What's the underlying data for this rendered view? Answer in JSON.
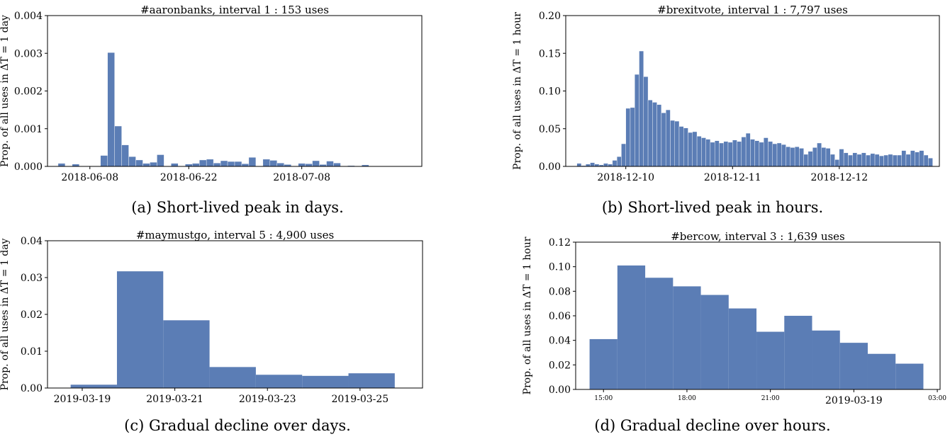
{
  "colors": {
    "bar": "#5b7db5",
    "axis": "#000000"
  },
  "panels": [
    {
      "caption": "(a) Short-lived peak in days.",
      "chart_data": {
        "type": "bar",
        "title": "#aaronbanks, interval 1 : 153 uses",
        "ylabel": "Prop. of all uses in ΔT = 1 day",
        "xlabel": "",
        "xlim": [
          0,
          53
        ],
        "ylim": [
          0,
          0.004
        ],
        "yticks": [
          "0.000",
          "0.001",
          "0.002",
          "0.003",
          "0.004"
        ],
        "ytick_values": [
          0,
          0.001,
          0.002,
          0.003,
          0.004
        ],
        "xticks": [
          {
            "pos": 6,
            "label": "2018-06-08"
          },
          {
            "pos": 20,
            "label": "2018-06-22"
          },
          {
            "pos": 36,
            "label": "2018-07-08"
          }
        ],
        "bar_width": 1,
        "x": [
          2,
          4,
          8,
          9,
          10,
          11,
          12,
          13,
          14,
          15,
          16,
          17,
          18,
          19,
          20,
          21,
          22,
          23,
          24,
          25,
          26,
          27,
          28,
          29,
          30,
          31,
          32,
          33,
          34,
          35,
          36,
          37,
          38,
          39,
          40,
          41,
          42,
          43,
          44,
          45,
          46,
          47,
          48,
          49,
          50,
          51,
          52
        ],
        "values": [
          8e-05,
          6e-05,
          0.00029,
          0.00302,
          0.00107,
          0.00057,
          0.00026,
          0.00017,
          8e-05,
          0.00011,
          0.00031,
          0,
          8e-05,
          0,
          6e-05,
          8e-05,
          0.00017,
          0.00019,
          9e-05,
          0.00015,
          0.00013,
          0.00013,
          7e-05,
          0.00024,
          0,
          0.00019,
          0.00016,
          9e-05,
          5e-05,
          0,
          8e-05,
          7e-05,
          0.00015,
          5e-05,
          0.00014,
          9e-05,
          0,
          2e-05,
          0,
          4e-05,
          0,
          0,
          0,
          0,
          0,
          0,
          0
        ]
      }
    },
    {
      "caption": "(b) Short-lived peak in hours.",
      "chart_data": {
        "type": "bar",
        "title": "#brexitvote, interval 1 : 7,797 uses",
        "ylabel": "Prop. of all uses in ΔT = 1 hour",
        "xlabel": "",
        "xlim": [
          -2,
          82
        ],
        "ylim": [
          0,
          0.2
        ],
        "yticks": [
          "0.00",
          "0.05",
          "0.10",
          "0.15",
          "0.20"
        ],
        "ytick_values": [
          0,
          0.05,
          0.1,
          0.15,
          0.2
        ],
        "xticks": [
          {
            "pos": 11.5,
            "label": "2018-12-10"
          },
          {
            "pos": 35.5,
            "label": "2018-12-11"
          },
          {
            "pos": 59.5,
            "label": "2018-12-12"
          }
        ],
        "bar_width": 1,
        "x": [
          1,
          2,
          3,
          4,
          5,
          6,
          7,
          8,
          9,
          10,
          11,
          12,
          13,
          14,
          15,
          16,
          17,
          18,
          19,
          20,
          21,
          22,
          23,
          24,
          25,
          26,
          27,
          28,
          29,
          30,
          31,
          32,
          33,
          34,
          35,
          36,
          37,
          38,
          39,
          40,
          41,
          42,
          43,
          44,
          45,
          46,
          47,
          48,
          49,
          50,
          51,
          52,
          53,
          54,
          55,
          56,
          57,
          58,
          59,
          60,
          61,
          62,
          63,
          64,
          65,
          66,
          67,
          68,
          69,
          70,
          71,
          72,
          73,
          74,
          75,
          76,
          77,
          78,
          79,
          80
        ],
        "values": [
          0.004,
          0.001,
          0.003,
          0.005,
          0.003,
          0.002,
          0.004,
          0.003,
          0.008,
          0.013,
          0.03,
          0.077,
          0.078,
          0.122,
          0.153,
          0.119,
          0.088,
          0.085,
          0.082,
          0.071,
          0.075,
          0.061,
          0.06,
          0.053,
          0.051,
          0.045,
          0.046,
          0.04,
          0.038,
          0.036,
          0.032,
          0.034,
          0.031,
          0.033,
          0.032,
          0.035,
          0.033,
          0.039,
          0.044,
          0.036,
          0.034,
          0.032,
          0.038,
          0.033,
          0.03,
          0.031,
          0.029,
          0.026,
          0.025,
          0.026,
          0.024,
          0.016,
          0.02,
          0.025,
          0.031,
          0.025,
          0.024,
          0.016,
          0.009,
          0.023,
          0.018,
          0.015,
          0.018,
          0.016,
          0.018,
          0.015,
          0.017,
          0.016,
          0.014,
          0.015,
          0.016,
          0.015,
          0.015,
          0.021,
          0.016,
          0.021,
          0.019,
          0.021,
          0.015,
          0.011
        ]
      }
    },
    {
      "caption": "(c) Gradual decline over days.",
      "chart_data": {
        "type": "bar",
        "title": "#maymustgo, interval 5 : 4,900 uses",
        "ylabel": "Prop. of all uses in ΔT = 1 day",
        "xlabel": "",
        "xlim": [
          -0.5,
          7.6
        ],
        "ylim": [
          0,
          0.04
        ],
        "yticks": [
          "0.00",
          "0.01",
          "0.02",
          "0.03",
          "0.04"
        ],
        "ytick_values": [
          0,
          0.01,
          0.02,
          0.03,
          0.04
        ],
        "xticks": [
          {
            "pos": 0.25,
            "label": "2019-03-19"
          },
          {
            "pos": 2.25,
            "label": "2019-03-21"
          },
          {
            "pos": 4.25,
            "label": "2019-03-23"
          },
          {
            "pos": 6.25,
            "label": "2019-03-25"
          }
        ],
        "bar_width": 1,
        "x": [
          0.5,
          1.5,
          2.5,
          3.5,
          4.5,
          5.5,
          6.5
        ],
        "values": [
          0.0009,
          0.0317,
          0.0184,
          0.0057,
          0.0036,
          0.0033,
          0.004
        ]
      }
    },
    {
      "caption": "(d) Gradual decline over hours.",
      "chart_data": {
        "type": "bar",
        "title": "#bercow, interval 3 : 1,639 uses",
        "ylabel": "Prop. of all uses in ΔT = 1 hour",
        "xlabel": "",
        "xlim": [
          -0.5,
          12.6
        ],
        "ylim": [
          0,
          0.12
        ],
        "yticks": [
          "0.00",
          "0.02",
          "0.04",
          "0.06",
          "0.08",
          "0.10",
          "0.12"
        ],
        "ytick_values": [
          0,
          0.02,
          0.04,
          0.06,
          0.08,
          0.1,
          0.12
        ],
        "xticks": [
          {
            "pos": 0.5,
            "label": "15:00",
            "small": true
          },
          {
            "pos": 3.5,
            "label": "18:00",
            "small": true
          },
          {
            "pos": 6.5,
            "label": "21:00",
            "small": true
          },
          {
            "pos": 9.5,
            "label": "2019-03-19"
          },
          {
            "pos": 12.5,
            "label": "03:00",
            "small": true
          }
        ],
        "bar_width": 1,
        "x": [
          0.5,
          1.5,
          2.5,
          3.5,
          4.5,
          5.5,
          6.5,
          7.5,
          8.5,
          9.5,
          10.5,
          11.5
        ],
        "values": [
          0.041,
          0.101,
          0.091,
          0.084,
          0.077,
          0.066,
          0.047,
          0.06,
          0.048,
          0.038,
          0.029,
          0.021
        ]
      }
    }
  ]
}
